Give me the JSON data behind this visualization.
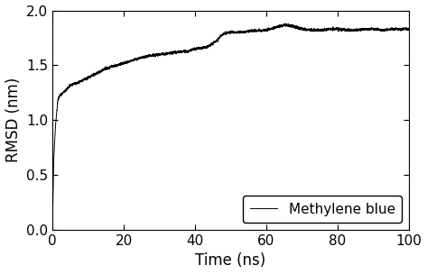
{
  "title": "",
  "xlabel": "Time (ns)",
  "ylabel": "RMSD (nm)",
  "xlim": [
    0,
    100
  ],
  "ylim": [
    0.0,
    2.0
  ],
  "xticks": [
    0,
    20,
    40,
    60,
    80,
    100
  ],
  "yticks": [
    0.0,
    0.5,
    1.0,
    1.5,
    2.0
  ],
  "line_color": "#000000",
  "line_width": 0.7,
  "legend_label": "Methylene blue",
  "legend_loc": "lower right",
  "background_color": "#ffffff",
  "seed": 42,
  "n_points": 10000,
  "key_points": [
    [
      0.0,
      0.0
    ],
    [
      0.3,
      0.6
    ],
    [
      0.8,
      0.93
    ],
    [
      1.5,
      1.18
    ],
    [
      2.0,
      1.22
    ],
    [
      3.0,
      1.25
    ],
    [
      4.0,
      1.28
    ],
    [
      5.0,
      1.32
    ],
    [
      6.0,
      1.33
    ],
    [
      7.0,
      1.34
    ],
    [
      9.0,
      1.37
    ],
    [
      12.0,
      1.42
    ],
    [
      15.0,
      1.47
    ],
    [
      18.0,
      1.5
    ],
    [
      20.0,
      1.52
    ],
    [
      22.0,
      1.54
    ],
    [
      25.0,
      1.57
    ],
    [
      28.0,
      1.59
    ],
    [
      30.0,
      1.6
    ],
    [
      33.0,
      1.61
    ],
    [
      35.0,
      1.62
    ],
    [
      38.0,
      1.63
    ],
    [
      40.0,
      1.65
    ],
    [
      42.0,
      1.66
    ],
    [
      43.5,
      1.67
    ],
    [
      45.0,
      1.7
    ],
    [
      46.0,
      1.72
    ],
    [
      47.0,
      1.76
    ],
    [
      48.0,
      1.79
    ],
    [
      50.0,
      1.8
    ],
    [
      52.0,
      1.8
    ],
    [
      55.0,
      1.81
    ],
    [
      58.0,
      1.82
    ],
    [
      60.0,
      1.82
    ],
    [
      62.0,
      1.84
    ],
    [
      65.0,
      1.87
    ],
    [
      67.0,
      1.86
    ],
    [
      70.0,
      1.83
    ],
    [
      73.0,
      1.82
    ],
    [
      75.0,
      1.82
    ],
    [
      78.0,
      1.83
    ],
    [
      80.0,
      1.83
    ],
    [
      83.0,
      1.82
    ],
    [
      85.0,
      1.82
    ],
    [
      88.0,
      1.83
    ],
    [
      90.0,
      1.83
    ],
    [
      93.0,
      1.82
    ],
    [
      95.0,
      1.83
    ],
    [
      98.0,
      1.83
    ],
    [
      100.0,
      1.83
    ]
  ],
  "noise_scale": 0.012,
  "figsize": [
    4.73,
    3.04
  ],
  "dpi": 100,
  "font_size": 12,
  "tick_labelsize": 11
}
